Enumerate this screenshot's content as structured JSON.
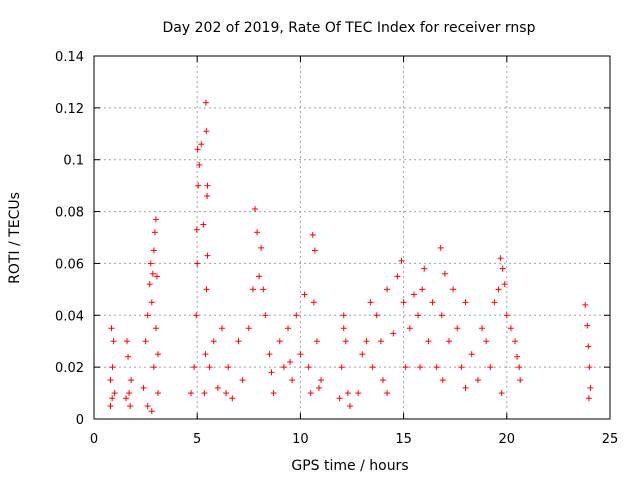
{
  "chart_data": {
    "type": "scatter",
    "title": "Day 202 of 2019, Rate Of TEC Index for receiver rnsp",
    "xlabel": "GPS time / hours",
    "ylabel": "ROTI / TECUs",
    "xlim": [
      0,
      25
    ],
    "ylim": [
      0,
      0.14
    ],
    "x_ticks": [
      0,
      5,
      10,
      15,
      20,
      25
    ],
    "x_tick_labels": [
      "0",
      "5",
      "10",
      "15",
      "20",
      "25"
    ],
    "y_ticks": [
      0,
      0.02,
      0.04,
      0.06,
      0.08,
      0.1,
      0.12,
      0.14
    ],
    "y_tick_labels": [
      "0",
      "0.02",
      "0.04",
      "0.06",
      "0.08",
      "0.1",
      "0.12",
      "0.14"
    ],
    "grid": true,
    "marker": "+",
    "color": "#ff0000",
    "series": [
      {
        "name": "ROTI",
        "x": [
          0.8,
          0.85,
          0.9,
          1.0,
          0.95,
          0.8,
          0.88,
          1.55,
          1.6,
          1.7,
          1.75,
          1.8,
          1.65,
          2.4,
          2.5,
          2.6,
          2.7,
          2.75,
          2.8,
          2.85,
          2.9,
          2.95,
          3.0,
          3.05,
          3.1,
          2.9,
          3.0,
          2.6,
          2.8,
          3.1,
          4.7,
          4.85,
          4.95,
          5.0,
          5.05,
          5.1,
          5.2,
          5.3,
          5.35,
          5.4,
          5.45,
          5.5,
          5.42,
          5.44,
          5.48,
          5.5,
          5.02,
          4.98,
          5.6,
          5.8,
          6.0,
          6.2,
          6.5,
          6.7,
          7.0,
          7.2,
          7.5,
          7.7,
          7.8,
          7.9,
          8.0,
          8.1,
          8.2,
          8.3,
          8.5,
          8.7,
          9.0,
          9.2,
          9.4,
          9.6,
          9.8,
          10.0,
          10.2,
          10.4,
          10.5,
          10.6,
          10.7,
          10.65,
          10.8,
          10.9,
          11.9,
          12.0,
          12.1,
          12.2,
          12.3,
          12.4,
          12.1,
          12.8,
          13.0,
          13.2,
          13.4,
          13.5,
          13.7,
          13.9,
          14.0,
          14.2,
          14.5,
          14.7,
          14.9,
          15.0,
          15.1,
          15.3,
          15.5,
          15.7,
          15.9,
          16.0,
          16.2,
          16.4,
          16.6,
          16.8,
          16.85,
          17.0,
          17.2,
          17.4,
          17.6,
          17.8,
          18.0,
          18.3,
          18.6,
          18.8,
          19.0,
          19.2,
          19.4,
          19.6,
          19.7,
          19.8,
          19.9,
          20.0,
          20.2,
          20.4,
          20.6,
          20.65,
          20.5,
          19.75,
          23.8,
          23.9,
          23.95,
          24.0,
          24.05,
          23.98,
          14.2,
          15.8,
          16.9,
          18.0,
          8.6,
          6.4,
          9.5,
          11.0
        ],
        "y": [
          0.005,
          0.035,
          0.02,
          0.01,
          0.03,
          0.015,
          0.008,
          0.008,
          0.03,
          0.01,
          0.005,
          0.015,
          0.024,
          0.012,
          0.03,
          0.04,
          0.052,
          0.06,
          0.045,
          0.056,
          0.065,
          0.072,
          0.077,
          0.055,
          0.01,
          0.02,
          0.035,
          0.005,
          0.003,
          0.025,
          0.01,
          0.02,
          0.04,
          0.06,
          0.09,
          0.098,
          0.106,
          0.075,
          0.01,
          0.025,
          0.05,
          0.09,
          0.122,
          0.111,
          0.086,
          0.063,
          0.104,
          0.073,
          0.02,
          0.03,
          0.012,
          0.035,
          0.02,
          0.008,
          0.03,
          0.015,
          0.035,
          0.05,
          0.081,
          0.072,
          0.055,
          0.066,
          0.05,
          0.04,
          0.025,
          0.01,
          0.03,
          0.02,
          0.035,
          0.015,
          0.04,
          0.025,
          0.048,
          0.02,
          0.01,
          0.071,
          0.065,
          0.045,
          0.03,
          0.012,
          0.008,
          0.02,
          0.035,
          0.03,
          0.01,
          0.005,
          0.04,
          0.01,
          0.025,
          0.03,
          0.045,
          0.02,
          0.04,
          0.03,
          0.015,
          0.05,
          0.033,
          0.055,
          0.061,
          0.045,
          0.02,
          0.035,
          0.048,
          0.04,
          0.05,
          0.058,
          0.03,
          0.045,
          0.02,
          0.066,
          0.04,
          0.056,
          0.03,
          0.05,
          0.035,
          0.02,
          0.045,
          0.025,
          0.015,
          0.035,
          0.03,
          0.02,
          0.045,
          0.05,
          0.062,
          0.058,
          0.052,
          0.04,
          0.035,
          0.03,
          0.02,
          0.015,
          0.024,
          0.01,
          0.044,
          0.036,
          0.028,
          0.02,
          0.012,
          0.008,
          0.01,
          0.02,
          0.015,
          0.012,
          0.018,
          0.01,
          0.022,
          0.015
        ]
      }
    ]
  }
}
